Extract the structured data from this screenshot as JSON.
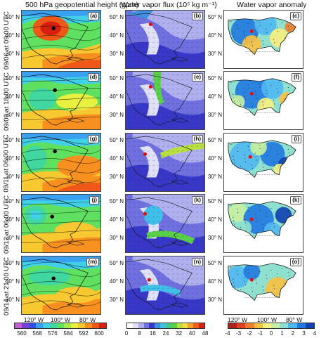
{
  "columns": [
    {
      "title": "500 hPa geopotential height (gpm)"
    },
    {
      "title": "Water vapor flux (10⁵ kg m⁻¹)"
    },
    {
      "title": "Water vapor anomaly"
    }
  ],
  "rows": [
    {
      "label": "09/06 at 09:00 UTC",
      "panels": [
        "(a)",
        "(b)",
        "(c)"
      ]
    },
    {
      "label": "09/09 at 18:00 UTC",
      "panels": [
        "(d)",
        "(e)",
        "(f)"
      ]
    },
    {
      "label": "09/11 at 06:00 UTC",
      "panels": [
        "(g)",
        "(h)",
        "(i)"
      ]
    },
    {
      "label": "09/12 at 06:00 UTC",
      "panels": [
        "(j)",
        "(k)",
        "(k)"
      ]
    },
    {
      "label": "09/14 at 21:00 UTC",
      "panels": [
        "(m)",
        "(n)",
        "(o)"
      ]
    }
  ],
  "lat_labels": [
    "50° N",
    "40° N",
    "30° N"
  ],
  "lon_labels": [
    "120° W",
    "100° W",
    "80° W"
  ],
  "colorbars": {
    "height": {
      "ticks": [
        "560",
        "568",
        "576",
        "584",
        "592",
        "600"
      ],
      "colors": [
        "#c060d0",
        "#7a3fd8",
        "#3050e8",
        "#3aa0f0",
        "#40d0e8",
        "#40d8a0",
        "#60e060",
        "#a8e848",
        "#e8f040",
        "#f8c830",
        "#f89020",
        "#f05818",
        "#d82010"
      ]
    },
    "flux": {
      "ticks": [
        "0",
        "8",
        "16",
        "24",
        "32",
        "40",
        "48"
      ],
      "colors": [
        "#ffffff",
        "#e0e0f8",
        "#b0b0f0",
        "#7070e0",
        "#3838c8",
        "#4090e0",
        "#40c0e8",
        "#40c890",
        "#58d048",
        "#b8e040",
        "#f0e040",
        "#f8a030",
        "#f06020",
        "#d82010"
      ]
    },
    "anomaly": {
      "ticks": [
        "-4",
        "-3",
        "-2",
        "-1",
        "0",
        "1",
        "2",
        "3",
        "4"
      ],
      "colors": [
        "#b02020",
        "#e04020",
        "#f08030",
        "#f8c040",
        "#f8f080",
        "#c8f0a0",
        "#90e0d0",
        "#50b8f0",
        "#2078e0",
        "#1040b0"
      ]
    }
  }
}
